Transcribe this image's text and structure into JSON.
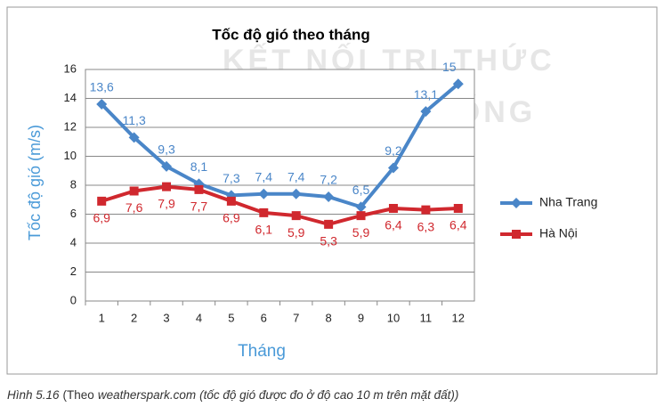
{
  "chart_data": {
    "type": "line",
    "title": "Tốc độ gió theo tháng",
    "watermark": [
      "KẾT NỐI TRI THỨC",
      "VỚI CUỘC SỐNG"
    ],
    "x_label": "Tháng",
    "y_label": "Tốc độ gió (m/s)",
    "categories": [
      "1",
      "2",
      "3",
      "4",
      "5",
      "6",
      "7",
      "8",
      "9",
      "10",
      "11",
      "12"
    ],
    "series": [
      {
        "name": "Nha Trang",
        "color": "#4a86c8",
        "marker": "diamond",
        "label_side": "above",
        "values": [
          13.6,
          11.3,
          9.3,
          8.1,
          7.3,
          7.4,
          7.4,
          7.2,
          6.5,
          9.2,
          13.1,
          15
        ],
        "value_labels": [
          "13,6",
          "11,3",
          "9,3",
          "8,1",
          "7,3",
          "7,4",
          "7,4",
          "7,2",
          "6,5",
          "9,2",
          "13,1",
          "15"
        ]
      },
      {
        "name": "Hà Nội",
        "color": "#d0282e",
        "marker": "square",
        "label_side": "below",
        "values": [
          6.9,
          7.6,
          7.9,
          7.7,
          6.9,
          6.1,
          5.9,
          5.3,
          5.9,
          6.4,
          6.3,
          6.4
        ],
        "value_labels": [
          "6,9",
          "7,6",
          "7,9",
          "7,7",
          "6,9",
          "6,1",
          "5,9",
          "5,3",
          "5,9",
          "6,4",
          "6,3",
          "6,4"
        ]
      }
    ],
    "ylim": [
      0,
      16
    ],
    "yticks": [
      0,
      2,
      4,
      6,
      8,
      10,
      12,
      14,
      16
    ],
    "grid": true,
    "legend": "right"
  },
  "caption": [
    "Hình 5.16",
    "(Theo",
    "weatherspark.com",
    "(tốc độ gió được đo ở độ cao 10 m trên mặt đất))"
  ]
}
